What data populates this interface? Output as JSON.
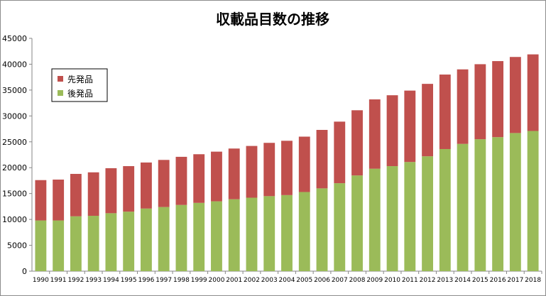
{
  "chart_data": {
    "type": "bar",
    "stacked": true,
    "title": "収載品目数の推移",
    "xlabel": "",
    "ylabel": "",
    "ylim": [
      0,
      45000
    ],
    "yticks": [
      0,
      5000,
      10000,
      15000,
      20000,
      25000,
      30000,
      35000,
      40000,
      45000
    ],
    "grid": false,
    "legend_position": "upper-left",
    "categories": [
      "1990",
      "1991",
      "1992",
      "1993",
      "1994",
      "1995",
      "1996",
      "1997",
      "1998",
      "1999",
      "2000",
      "2001",
      "2002",
      "2003",
      "2004",
      "2005",
      "2006",
      "2007",
      "2008",
      "2009",
      "2010",
      "2011",
      "2012",
      "2013",
      "2014",
      "2015",
      "2016",
      "2017",
      "2018"
    ],
    "series": [
      {
        "name": "後発品",
        "color": "#9bbb59",
        "values": [
          9800,
          9800,
          10600,
          10700,
          11200,
          11500,
          12100,
          12400,
          12800,
          13200,
          13500,
          13900,
          14200,
          14500,
          14700,
          15300,
          16000,
          17000,
          18500,
          19800,
          20300,
          21100,
          22200,
          23600,
          24600,
          25500,
          25900,
          26700,
          27100
        ]
      },
      {
        "name": "先発品",
        "color": "#c0504d",
        "values": [
          7800,
          7900,
          8200,
          8400,
          8700,
          8800,
          8900,
          9100,
          9300,
          9400,
          9600,
          9800,
          10000,
          10300,
          10500,
          10700,
          11300,
          11900,
          12600,
          13400,
          13700,
          13800,
          14000,
          14400,
          14400,
          14500,
          14700,
          14700,
          14800
        ]
      }
    ]
  }
}
